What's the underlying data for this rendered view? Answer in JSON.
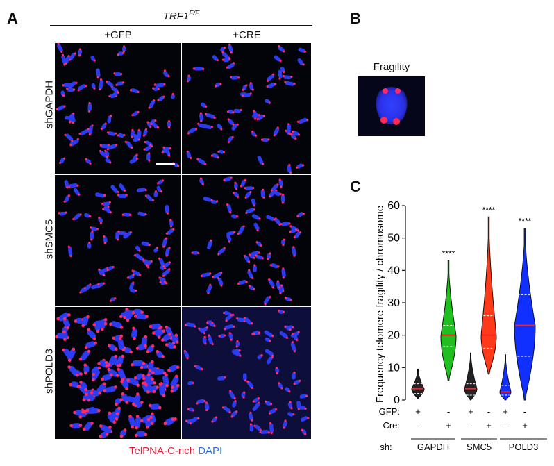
{
  "panels": {
    "a": "A",
    "b": "B",
    "c": "C"
  },
  "panel_a": {
    "genotype": "TRF1",
    "genotype_sup": "F/F",
    "columns": [
      "+GFP",
      "+CRE"
    ],
    "rows": [
      "shGAPDH",
      "shSMC5",
      "shPOLD3"
    ],
    "stain_red": "TelPNA-C-rich",
    "stain_blue": "DAPI"
  },
  "panel_b": {
    "title": "Fragility"
  },
  "colors": {
    "dapi": "#2b3bf0",
    "telomere": "#ff2a6a",
    "gfp_violin": "#1ebf1e",
    "smc5_violin": "#ff3a1a",
    "pold3_violin": "#1030ff",
    "gapdh_violin": "#222222",
    "median": "#ff2020"
  },
  "chart_data": {
    "type": "violin",
    "ylabel": "Frequency telomere fragility / chromosome",
    "ylim": [
      0,
      60
    ],
    "yticks": [
      0,
      10,
      20,
      30,
      40,
      50,
      60
    ],
    "row_labels": {
      "gfp": "GFP:",
      "cre": "Cre:",
      "sh": "sh:"
    },
    "groups": [
      "GAPDH",
      "SMC5",
      "POLD3"
    ],
    "gfp": [
      "+",
      "-",
      "+",
      "-",
      "+",
      "-"
    ],
    "cre": [
      "-",
      "+",
      "-",
      "+",
      "-",
      "+"
    ],
    "series": [
      {
        "group": "GAPDH",
        "condition": "GFP",
        "median": 3.5,
        "q1": 2,
        "q3": 5,
        "min": 0.5,
        "max": 9.5,
        "significance": ""
      },
      {
        "group": "GAPDH",
        "condition": "Cre",
        "median": 20,
        "q1": 16.5,
        "q3": 23,
        "min": 6,
        "max": 43,
        "significance": "****"
      },
      {
        "group": "SMC5",
        "condition": "GFP",
        "median": 3.5,
        "q1": 1.5,
        "q3": 5,
        "min": 0,
        "max": 14.5,
        "significance": ""
      },
      {
        "group": "SMC5",
        "condition": "Cre",
        "median": 20,
        "q1": 16,
        "q3": 26,
        "min": 8,
        "max": 56.5,
        "significance": "****"
      },
      {
        "group": "POLD3",
        "condition": "GFP",
        "median": 2.5,
        "q1": 1.5,
        "q3": 4.5,
        "min": 0,
        "max": 14,
        "significance": ""
      },
      {
        "group": "POLD3",
        "condition": "Cre",
        "median": 23,
        "q1": 13.5,
        "q3": 32.5,
        "min": 0,
        "max": 53,
        "significance": "****"
      }
    ]
  }
}
